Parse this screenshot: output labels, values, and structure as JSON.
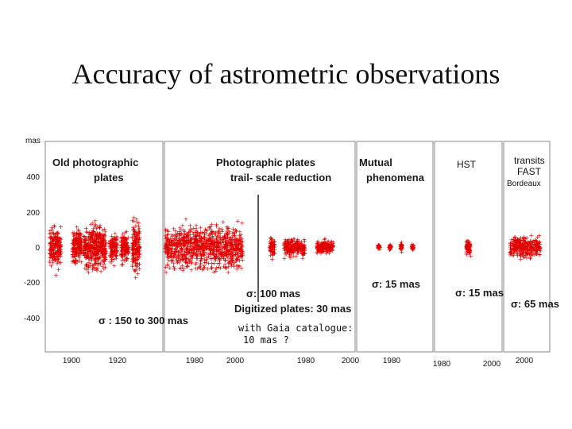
{
  "title": "Accuracy of astrometric observations",
  "colors": {
    "points": "#e00000",
    "axes": "#222222",
    "panel_bg": "#ffffff"
  },
  "chart_data": {
    "type": "scatter",
    "ylabel": "mas",
    "ylim": [
      -560,
      560
    ],
    "yticks": [
      "400",
      "200",
      "0",
      "-200",
      "-400"
    ],
    "ytick_values": [
      400,
      200,
      0,
      -200,
      -400
    ],
    "panels": [
      {
        "name": "old-photographic",
        "label_lines": [
          "Old photographic",
          "plates"
        ],
        "xlim": [
          1888,
          1950
        ],
        "xticks": [
          "1900",
          "1920"
        ],
        "xtick_values": [
          1900,
          1920
        ],
        "clusters": [
          {
            "x": [
              1890,
              1896
            ],
            "spread": 140
          },
          {
            "x": [
              1902,
              1907
            ],
            "spread": 130
          },
          {
            "x": [
              1908,
              1915
            ],
            "spread": 150
          },
          {
            "x": [
              1915,
              1920
            ],
            "spread": 160
          },
          {
            "x": [
              1922,
              1926
            ],
            "spread": 90
          },
          {
            "x": [
              1928,
              1932
            ],
            "spread": 100
          },
          {
            "x": [
              1934,
              1938
            ],
            "spread": 180
          }
        ],
        "note": "σ : 150 to 300 mas"
      },
      {
        "name": "photographic-trail-scale",
        "label_lines": [
          "Photographic plates",
          "trail- scale reduction"
        ],
        "xlim": [
          1962,
          2004
        ],
        "xticks": [
          "1980",
          "2000"
        ],
        "xtick_values": [
          1980,
          2000
        ],
        "clusters": [
          {
            "x": [
              1962,
              1998
            ],
            "spread": 150
          }
        ],
        "note": "σ: 100 mas"
      },
      {
        "name": "digitized-plates",
        "label_lines": [],
        "xlim": [
          1960,
          2000
        ],
        "xticks": [
          "1980",
          "2000"
        ],
        "xtick_values": [
          1980,
          2000
        ],
        "clusters": [
          {
            "x": [
              1964,
              1966
            ],
            "spread": 70
          },
          {
            "x": [
              1970,
              1979
            ],
            "spread": 60
          },
          {
            "x": [
              1984,
              1991
            ],
            "spread": 40
          }
        ],
        "note": "Digitized plates: 30 mas",
        "extra_note_lines": [
          "with Gaia catalogue:",
          "10 mas ?"
        ]
      },
      {
        "name": "mutual-phenomena",
        "label_lines": [
          "Mutual",
          "phenomena"
        ],
        "xlim": [
          1962,
          2002
        ],
        "xticks": [
          "1980"
        ],
        "xtick_values": [
          1980
        ],
        "clusters": [
          {
            "x": [
              1973,
              1974
            ],
            "spread": 20
          },
          {
            "x": [
              1979,
              1980
            ],
            "spread": 20
          },
          {
            "x": [
              1985,
              1986
            ],
            "spread": 30
          },
          {
            "x": [
              1991,
              1992
            ],
            "spread": 20
          }
        ],
        "note": "σ: 15 mas"
      },
      {
        "name": "hst",
        "label_lines": [
          "HST"
        ],
        "xlim": [
          1980,
          2010
        ],
        "xticks": [
          "1980",
          "2000"
        ],
        "xtick_values": [
          1980,
          2000
        ],
        "clusters": [
          {
            "x": [
              1994,
              1996
            ],
            "spread": 60
          }
        ],
        "note": "σ: 15 mas"
      },
      {
        "name": "transits-fast",
        "label_lines": [
          "transits",
          "FAST"
        ],
        "xlim": [
          1996,
          2012
        ],
        "xticks": [
          "2000"
        ],
        "xtick_values": [
          2000
        ],
        "clusters": [
          {
            "x": [
              1998,
              2009
            ],
            "spread": 70
          }
        ],
        "note": "σ: 65 mas",
        "extra_note_lines": [
          "Bordeaux"
        ]
      }
    ]
  }
}
